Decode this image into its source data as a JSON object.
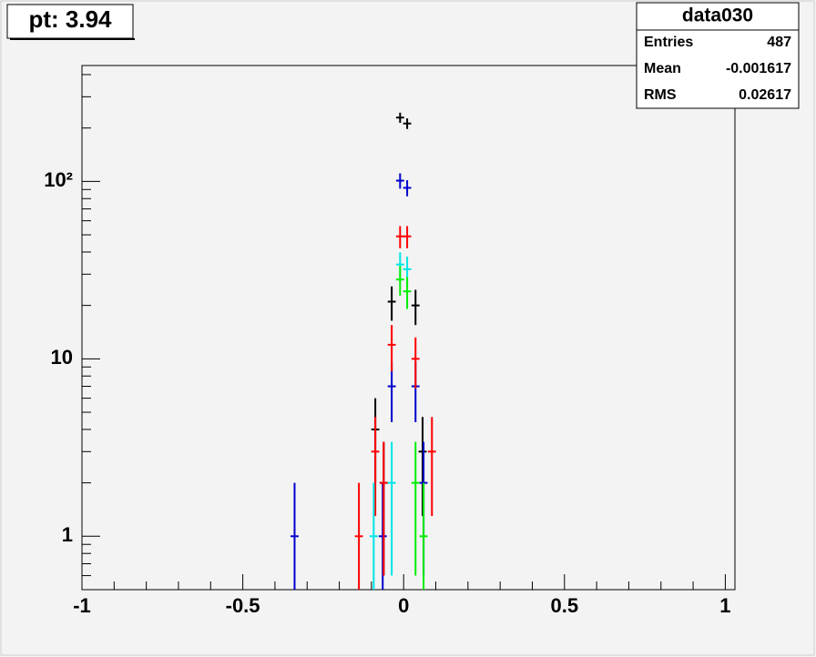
{
  "chart_data": {
    "type": "errorbar",
    "title": "pt: 3.94",
    "stats": {
      "title": "data030",
      "rows": [
        {
          "label": "Entries",
          "value": 487
        },
        {
          "label": "Mean",
          "value": -0.001617
        },
        {
          "label": "RMS",
          "value": 0.02617
        }
      ]
    },
    "xlim": [
      -1,
      1.03
    ],
    "xticks": [
      -1,
      -0.5,
      0,
      0.5,
      1
    ],
    "xminorticks": [
      -0.9,
      -0.8,
      -0.7,
      -0.6,
      -0.4,
      -0.3,
      -0.2,
      -0.1,
      0.1,
      0.2,
      0.3,
      0.4,
      0.6,
      0.7,
      0.8,
      0.9
    ],
    "ylim": [
      0.5,
      450
    ],
    "log_y": true,
    "yticks": [
      1,
      10,
      {
        "value": 100,
        "label": "10²"
      }
    ],
    "yminorticks": [
      0.6,
      0.7,
      0.8,
      0.9,
      2,
      3,
      4,
      5,
      6,
      7,
      8,
      9,
      20,
      30,
      40,
      50,
      60,
      70,
      80,
      90,
      200,
      300,
      400
    ],
    "x_error": 0.0125,
    "series": [
      {
        "color": "#000000",
        "x": [
          -0.011,
          0.011,
          -0.037,
          0.037,
          -0.088,
          -0.062,
          0.059
        ],
        "values": [
          229,
          212,
          21,
          20,
          4,
          2,
          3
        ],
        "errors": [
          15.1,
          14.6,
          4.6,
          4.5,
          2,
          1.4,
          1.7
        ]
      },
      {
        "color": "#0000cc",
        "x": [
          -0.011,
          0.011,
          -0.037,
          0.037,
          -0.339,
          -0.065,
          0.062
        ],
        "values": [
          101,
          92,
          7,
          7,
          1,
          1,
          2
        ],
        "errors": [
          10,
          9.6,
          2.6,
          2.6,
          1,
          1,
          1.4
        ]
      },
      {
        "color": "#ff0000",
        "x": [
          -0.011,
          0.011,
          -0.037,
          0.037,
          -0.088,
          -0.139,
          -0.062,
          0.088
        ],
        "values": [
          49,
          49,
          12,
          10,
          3,
          1,
          2,
          3
        ],
        "errors": [
          7,
          7,
          3.5,
          3.2,
          1.7,
          1,
          1.4,
          1.7
        ]
      },
      {
        "color": "#00e5e5",
        "x": [
          -0.011,
          0.011,
          -0.037,
          -0.093
        ],
        "values": [
          34,
          32,
          2,
          1
        ],
        "errors": [
          5.8,
          5.7,
          1.4,
          1
        ]
      },
      {
        "color": "#00ee00",
        "x": [
          -0.011,
          0.011,
          0.037,
          0.062
        ],
        "values": [
          28,
          24,
          2,
          1
        ],
        "errors": [
          5.3,
          4.9,
          1.4,
          1
        ]
      }
    ]
  }
}
